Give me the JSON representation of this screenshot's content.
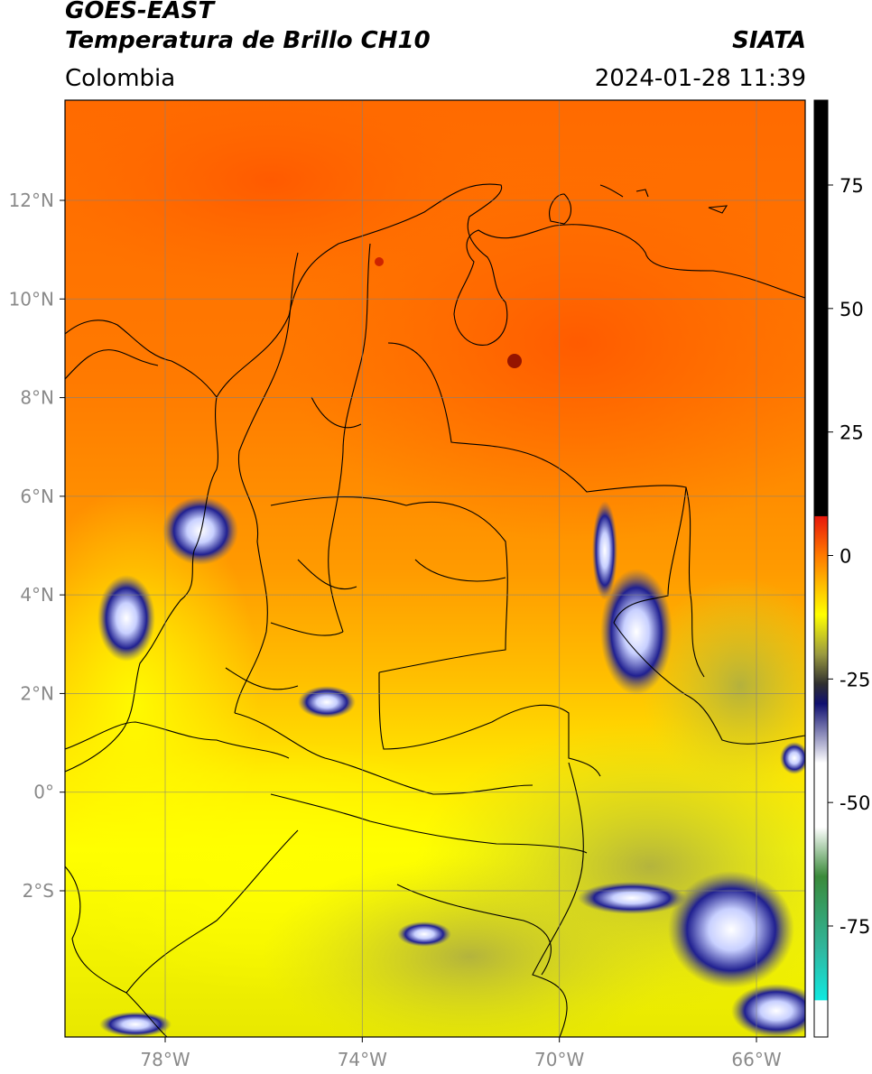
{
  "header": {
    "title_line1": "GOES-EAST",
    "title_line2": "Temperatura de Brillo CH10",
    "region": "Colombia",
    "source": "SIATA",
    "datetime": "2024-01-28 11:39"
  },
  "map": {
    "lon_range": [
      -80,
      -65
    ],
    "lat_range": [
      -5,
      14
    ],
    "lat_ticks": [
      "12°N",
      "10°N",
      "8°N",
      "6°N",
      "4°N",
      "2°N",
      "0°",
      "2°S"
    ],
    "lon_ticks": [
      "78°W",
      "74°W",
      "70°W",
      "66°W"
    ],
    "grid": true
  },
  "colorbar": {
    "ticks": [
      "75",
      "50",
      "25",
      "0",
      "-25",
      "-50",
      "-75"
    ],
    "range": [
      -95,
      90
    ],
    "colors": {
      "black": "#000000",
      "red": "#e8180c",
      "orange": "#ff7a00",
      "yellow": "#ffff00",
      "olive": "#9a9a40",
      "navy": "#101070",
      "white": "#ffffff",
      "green": "#3a8a3a",
      "cyan": "#10e8e0"
    }
  }
}
